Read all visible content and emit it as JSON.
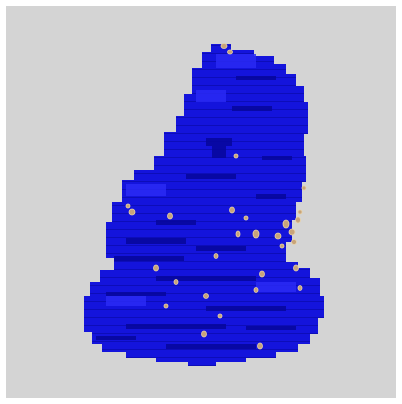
{
  "scene": {
    "kind": "3d-voxel-render",
    "background_color": "#d4d4d4",
    "object": {
      "name": "molecular-surface",
      "color": "#1010d8",
      "shade_dark": "#06069c",
      "shade_light": "#2424f0"
    },
    "particles": {
      "name": "tan-particles",
      "color": "#c8a47a",
      "edge_color": "#e8d2a8"
    }
  }
}
